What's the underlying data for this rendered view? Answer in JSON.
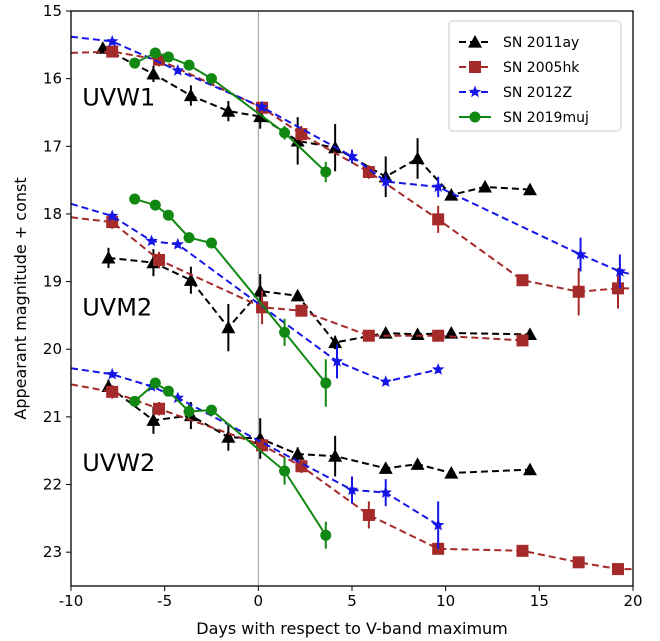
{
  "chart_data": {
    "type": "line",
    "xlabel": "Days with respect to V-band maximum",
    "ylabel": "Appearant magnitude + const",
    "xlim": [
      -10,
      20
    ],
    "ylim": [
      23.5,
      15
    ],
    "y_inverted": true,
    "xticks": [
      -10,
      -5,
      0,
      5,
      10,
      15,
      20
    ],
    "yticks": [
      15,
      16,
      17,
      18,
      19,
      20,
      21,
      22,
      23
    ],
    "reference_line_x": 0,
    "legend_position": "top-right",
    "panel_labels": [
      {
        "text": "UVW1",
        "x": -9.4,
        "y": 16.4
      },
      {
        "text": "UVM2",
        "x": -9.4,
        "y": 19.5
      },
      {
        "text": "UVW2",
        "x": -9.4,
        "y": 21.8
      }
    ],
    "series": [
      {
        "name": "SN 2011ay",
        "color": "#000000",
        "marker": "triangle",
        "groups": [
          [
            {
              "x": -8.3,
              "y": 15.55,
              "err": 0
            },
            {
              "x": -5.6,
              "y": 15.93,
              "err": 0.12
            },
            {
              "x": -3.6,
              "y": 16.25,
              "err": 0.15
            },
            {
              "x": -1.6,
              "y": 16.48,
              "err": 0.15
            },
            {
              "x": 0.1,
              "y": 16.56,
              "err": 0.18
            },
            {
              "x": 2.1,
              "y": 16.92,
              "err": 0.35
            },
            {
              "x": 4.1,
              "y": 17.02,
              "err": 0.35
            },
            {
              "x": 6.8,
              "y": 17.45,
              "err": 0.3
            },
            {
              "x": 8.5,
              "y": 17.18,
              "err": 0.3
            },
            {
              "x": 10.3,
              "y": 17.72,
              "err": 0.05
            },
            {
              "x": 12.1,
              "y": 17.6,
              "err": 0.05
            },
            {
              "x": 14.5,
              "y": 17.64,
              "err": 0.05
            }
          ],
          [
            {
              "x": -8.0,
              "y": 18.65,
              "err": 0.15
            },
            {
              "x": -5.6,
              "y": 18.72,
              "err": 0.2
            },
            {
              "x": -3.6,
              "y": 18.98,
              "err": 0.2
            },
            {
              "x": -1.6,
              "y": 19.68,
              "err": 0.35
            },
            {
              "x": 0.1,
              "y": 19.14,
              "err": 0.25
            },
            {
              "x": 2.1,
              "y": 19.21,
              "err": 0.05
            },
            {
              "x": 4.1,
              "y": 19.9,
              "err": 0.1
            },
            {
              "x": 6.8,
              "y": 19.76,
              "err": 0.05
            },
            {
              "x": 8.5,
              "y": 19.78,
              "err": 0.05
            },
            {
              "x": 10.3,
              "y": 19.76,
              "err": 0.05
            },
            {
              "x": 14.5,
              "y": 19.78,
              "err": 0.05
            }
          ],
          [
            {
              "x": -8.0,
              "y": 20.55,
              "err": 0.1
            },
            {
              "x": -5.6,
              "y": 21.05,
              "err": 0.2
            },
            {
              "x": -3.6,
              "y": 20.98,
              "err": 0.2
            },
            {
              "x": -1.6,
              "y": 21.3,
              "err": 0.2
            },
            {
              "x": 0.1,
              "y": 21.32,
              "err": 0.3
            },
            {
              "x": 2.1,
              "y": 21.55,
              "err": 0.1
            },
            {
              "x": 4.1,
              "y": 21.58,
              "err": 0.3
            },
            {
              "x": 6.8,
              "y": 21.76,
              "err": 0.05
            },
            {
              "x": 8.5,
              "y": 21.7,
              "err": 0.05
            },
            {
              "x": 10.3,
              "y": 21.83,
              "err": 0.05
            },
            {
              "x": 14.5,
              "y": 21.78,
              "err": 0.05
            }
          ]
        ]
      },
      {
        "name": "SN 2005hk",
        "color": "#a52a2a",
        "marker": "square",
        "groups": [
          [
            {
              "x": -10.0,
              "y": 15.62,
              "err": 0,
              "nomark": true
            },
            {
              "x": -7.8,
              "y": 15.6,
              "err": 0.05
            },
            {
              "x": -5.3,
              "y": 15.72,
              "err": 0.1
            },
            {
              "x": 0.2,
              "y": 16.43,
              "err": 0.05
            },
            {
              "x": 2.3,
              "y": 16.82,
              "err": 0.12
            },
            {
              "x": 5.9,
              "y": 17.38,
              "err": 0.1
            },
            {
              "x": 9.6,
              "y": 18.08,
              "err": 0.2
            },
            {
              "x": 14.1,
              "y": 18.98,
              "err": 0.05
            },
            {
              "x": 17.1,
              "y": 19.15,
              "err": 0.35
            },
            {
              "x": 19.2,
              "y": 19.1,
              "err": 0.3
            },
            {
              "x": 20.0,
              "y": 19.1,
              "err": 0,
              "nomark": true
            }
          ],
          [
            {
              "x": -10.0,
              "y": 18.05,
              "err": 0,
              "nomark": true
            },
            {
              "x": -7.8,
              "y": 18.12,
              "err": 0.1
            },
            {
              "x": -5.3,
              "y": 18.68,
              "err": 0.12
            },
            {
              "x": 0.2,
              "y": 19.38,
              "err": 0.25
            },
            {
              "x": 2.3,
              "y": 19.43,
              "err": 0.05
            },
            {
              "x": 5.9,
              "y": 19.8,
              "err": 0.05
            },
            {
              "x": 9.6,
              "y": 19.8,
              "err": 0.05
            },
            {
              "x": 14.1,
              "y": 19.87,
              "err": 0.05
            }
          ],
          [
            {
              "x": -10.0,
              "y": 20.52,
              "err": 0,
              "nomark": true
            },
            {
              "x": -7.8,
              "y": 20.63,
              "err": 0.1
            },
            {
              "x": -5.3,
              "y": 20.88,
              "err": 0.1
            },
            {
              "x": 0.2,
              "y": 21.42,
              "err": 0.1
            },
            {
              "x": 2.3,
              "y": 21.73,
              "err": 0.1
            },
            {
              "x": 5.9,
              "y": 22.45,
              "err": 0.2
            },
            {
              "x": 9.6,
              "y": 22.95,
              "err": 0.05
            },
            {
              "x": 14.1,
              "y": 22.98,
              "err": 0.05
            },
            {
              "x": 17.1,
              "y": 23.15,
              "err": 0.05
            },
            {
              "x": 19.2,
              "y": 23.25,
              "err": 0.05
            },
            {
              "x": 20.0,
              "y": 23.25,
              "err": 0,
              "nomark": true
            }
          ]
        ]
      },
      {
        "name": "SN 2012Z",
        "color": "#1515e6",
        "marker": "star",
        "groups": [
          [
            {
              "x": -10.0,
              "y": 15.38,
              "err": 0,
              "nomark": true
            },
            {
              "x": -7.8,
              "y": 15.45,
              "err": 0.05
            },
            {
              "x": -4.3,
              "y": 15.88,
              "err": 0.05
            },
            {
              "x": 0.2,
              "y": 16.42,
              "err": 0.05
            },
            {
              "x": 5.0,
              "y": 17.15,
              "err": 0.1
            },
            {
              "x": 6.8,
              "y": 17.52,
              "err": 0.1
            },
            {
              "x": 9.6,
              "y": 17.6,
              "err": 0.15
            },
            {
              "x": 17.2,
              "y": 18.6,
              "err": 0.25
            },
            {
              "x": 19.3,
              "y": 18.85,
              "err": 0.25
            },
            {
              "x": 20.0,
              "y": 18.9,
              "err": 0,
              "nomark": true
            }
          ],
          [
            {
              "x": -10.0,
              "y": 17.85,
              "err": 0,
              "nomark": true
            },
            {
              "x": -7.8,
              "y": 18.03,
              "err": 0.05
            },
            {
              "x": -5.7,
              "y": 18.4,
              "err": 0.05
            },
            {
              "x": -4.3,
              "y": 18.45,
              "err": 0.05
            },
            {
              "x": 4.2,
              "y": 20.18,
              "err": 0.25
            },
            {
              "x": 6.8,
              "y": 20.48,
              "err": 0.05
            },
            {
              "x": 9.6,
              "y": 20.3,
              "err": 0.05
            }
          ],
          [
            {
              "x": -10.0,
              "y": 20.28,
              "err": 0,
              "nomark": true
            },
            {
              "x": -7.8,
              "y": 20.37,
              "err": 0.05
            },
            {
              "x": -5.7,
              "y": 20.55,
              "err": 0.05
            },
            {
              "x": -4.3,
              "y": 20.72,
              "err": 0.05
            },
            {
              "x": 5.0,
              "y": 22.08,
              "err": 0.2
            },
            {
              "x": 6.8,
              "y": 22.12,
              "err": 0.2
            },
            {
              "x": 9.6,
              "y": 22.6,
              "err": 0.35
            }
          ]
        ]
      },
      {
        "name": "SN 2019muj",
        "color": "#118811",
        "marker": "circle",
        "groups": [
          [
            {
              "x": -6.6,
              "y": 15.77,
              "err": 0.05
            },
            {
              "x": -5.5,
              "y": 15.62,
              "err": 0.05
            },
            {
              "x": -4.8,
              "y": 15.68,
              "err": 0.05
            },
            {
              "x": -3.7,
              "y": 15.8,
              "err": 0.05
            },
            {
              "x": -2.5,
              "y": 16.0,
              "err": 0.05
            },
            {
              "x": 1.4,
              "y": 16.8,
              "err": 0.1
            },
            {
              "x": 3.6,
              "y": 17.38,
              "err": 0.15
            }
          ],
          [
            {
              "x": -6.6,
              "y": 17.78,
              "err": 0.05
            },
            {
              "x": -5.5,
              "y": 17.87,
              "err": 0.05
            },
            {
              "x": -4.8,
              "y": 18.02,
              "err": 0.05
            },
            {
              "x": -3.7,
              "y": 18.35,
              "err": 0.05
            },
            {
              "x": -2.5,
              "y": 18.43,
              "err": 0.05
            },
            {
              "x": 1.4,
              "y": 19.75,
              "err": 0.2
            },
            {
              "x": 3.6,
              "y": 20.5,
              "err": 0.35
            }
          ],
          [
            {
              "x": -6.6,
              "y": 20.77,
              "err": 0.05
            },
            {
              "x": -5.5,
              "y": 20.5,
              "err": 0.05
            },
            {
              "x": -4.8,
              "y": 20.62,
              "err": 0.05
            },
            {
              "x": -3.7,
              "y": 20.92,
              "err": 0.1
            },
            {
              "x": -2.5,
              "y": 20.9,
              "err": 0.05
            },
            {
              "x": 1.4,
              "y": 21.8,
              "err": 0.2
            },
            {
              "x": 3.6,
              "y": 22.75,
              "err": 0.2
            }
          ]
        ]
      }
    ]
  }
}
